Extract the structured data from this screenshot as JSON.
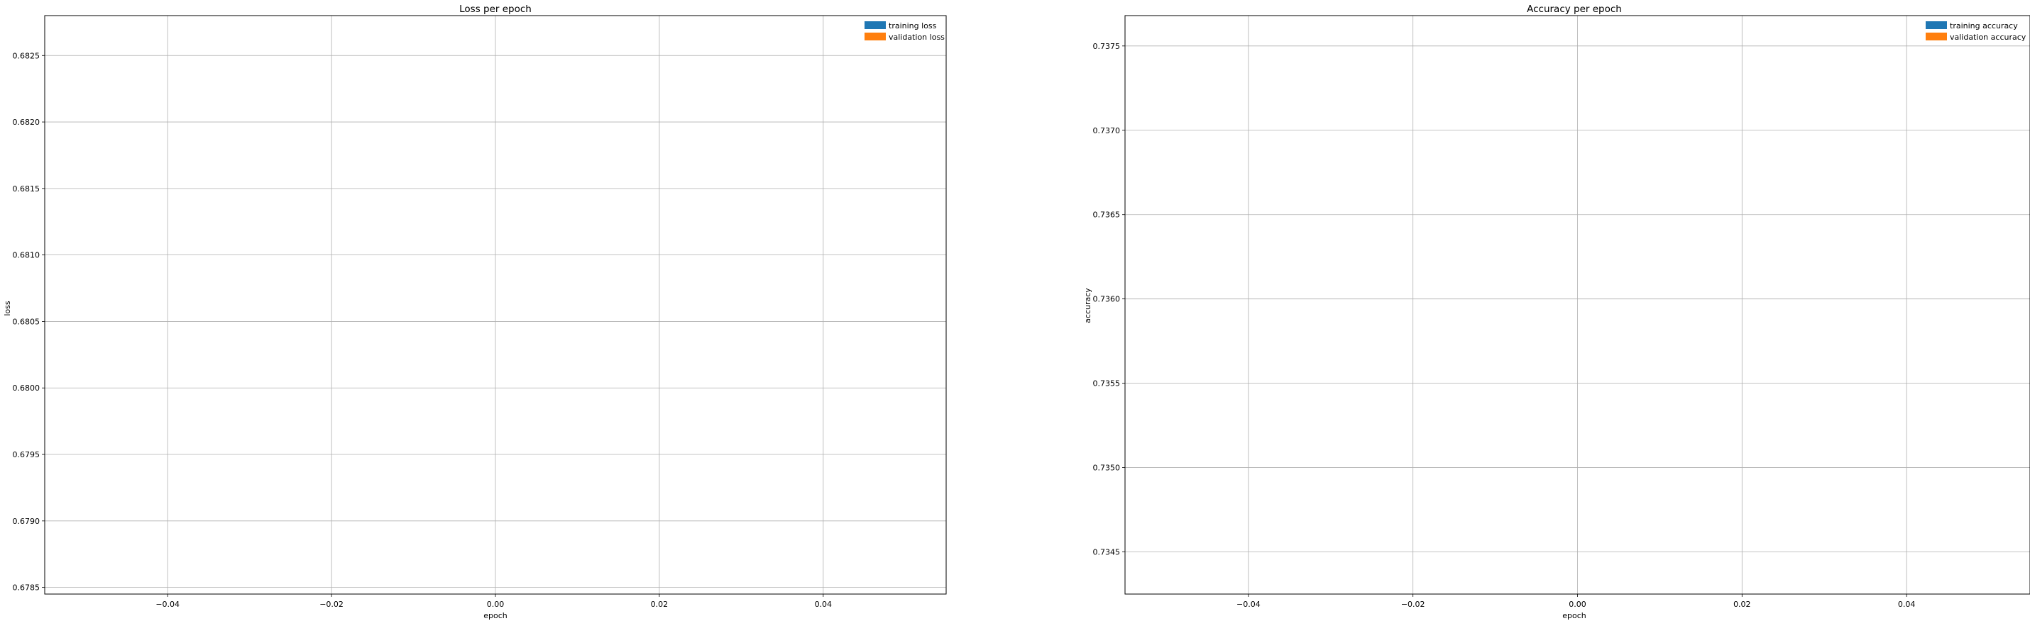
{
  "chart_data": [
    {
      "type": "bar",
      "title": "Loss per epoch",
      "xlabel": "epoch",
      "ylabel": "loss",
      "xlim": [
        -0.055,
        0.055
      ],
      "ylim": [
        0.67845,
        0.6828
      ],
      "xticks": [
        -0.04,
        -0.02,
        0.0,
        0.02,
        0.04
      ],
      "xtick_labels": [
        "−0.04",
        "−0.02",
        "0.00",
        "0.02",
        "0.04"
      ],
      "yticks": [
        0.6785,
        0.679,
        0.6795,
        0.68,
        0.6805,
        0.681,
        0.6815,
        0.682,
        0.6825
      ],
      "ytick_labels": [
        "0.6785",
        "0.6790",
        "0.6795",
        "0.6800",
        "0.6805",
        "0.6810",
        "0.6815",
        "0.6820",
        "0.6825"
      ],
      "grid": true,
      "legend_position": "top-right",
      "series": [
        {
          "name": "training loss",
          "color": "#1f77b4",
          "values": []
        },
        {
          "name": "validation loss",
          "color": "#ff7f0e",
          "values": []
        }
      ]
    },
    {
      "type": "bar",
      "title": "Accuracy per epoch",
      "xlabel": "epoch",
      "ylabel": "accuracy",
      "xlim": [
        -0.055,
        0.055
      ],
      "ylim": [
        0.73425,
        0.73768
      ],
      "xticks": [
        -0.04,
        -0.02,
        0.0,
        0.02,
        0.04
      ],
      "xtick_labels": [
        "−0.04",
        "−0.02",
        "0.00",
        "0.02",
        "0.04"
      ],
      "yticks": [
        0.7345,
        0.735,
        0.7355,
        0.736,
        0.7365,
        0.737,
        0.7375
      ],
      "ytick_labels": [
        "0.7345",
        "0.7350",
        "0.7355",
        "0.7360",
        "0.7365",
        "0.7370",
        "0.7375"
      ],
      "grid": true,
      "legend_position": "top-right",
      "series": [
        {
          "name": "training accuracy",
          "color": "#1f77b4",
          "values": []
        },
        {
          "name": "validation accuracy",
          "color": "#ff7f0e",
          "values": []
        }
      ]
    }
  ]
}
